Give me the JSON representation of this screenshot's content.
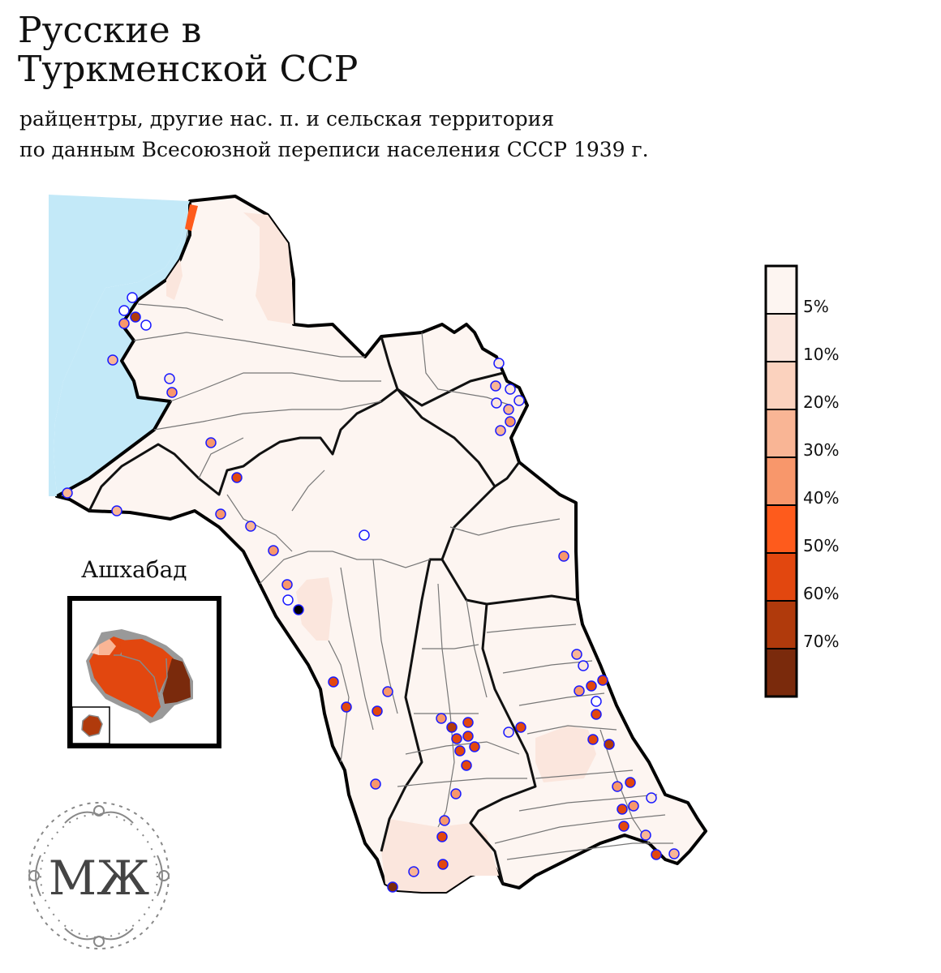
{
  "title": {
    "line1": "Русские в",
    "line2": "Туркменской ССР"
  },
  "subtitle": {
    "line1": "райцентры, другие нас. п. и сельская территория",
    "line2": "по данным Всесоюзной переписи населения СССР 1939 г."
  },
  "inset": {
    "label": "Ашхабад"
  },
  "logo": {
    "monogram": "МЖ"
  },
  "legend": {
    "classes": [
      {
        "color": "#fdf5f1",
        "label": "5%"
      },
      {
        "color": "#fbe6dd",
        "label": "10%"
      },
      {
        "color": "#fbd2be",
        "label": "20%"
      },
      {
        "color": "#f9b595",
        "label": "30%"
      },
      {
        "color": "#f8976b",
        "label": "40%"
      },
      {
        "color": "#fe5b1c",
        "label": "50%"
      },
      {
        "color": "#e2470f",
        "label": "60%"
      },
      {
        "color": "#b03a0c",
        "label": "70%"
      },
      {
        "color": "#7a2a0c",
        "label": ""
      }
    ]
  },
  "colors": {
    "sea": "#c3e9f8",
    "land_base": "#fdf5f1",
    "border_outer": "#000000",
    "border_region": "#111111",
    "border_district": "#777777",
    "dot_stroke": "#1a1aff"
  }
}
